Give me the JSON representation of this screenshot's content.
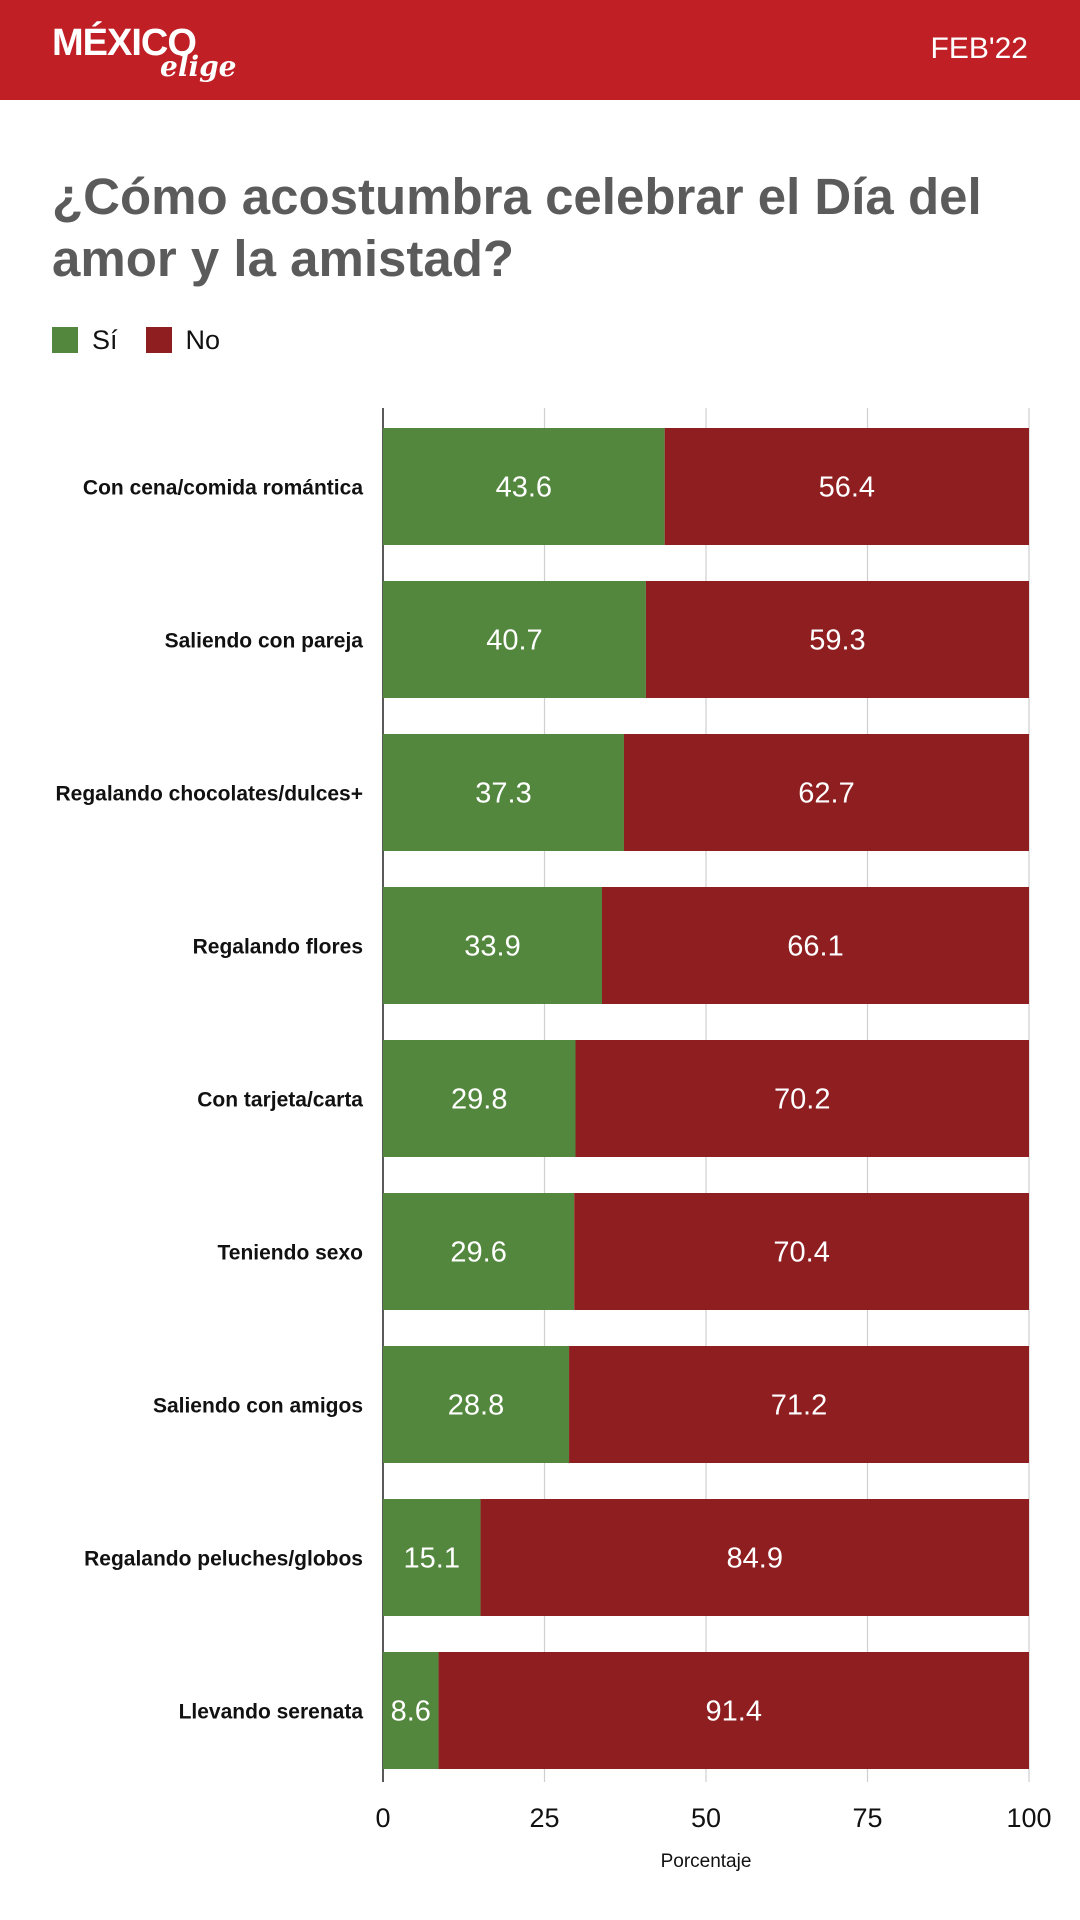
{
  "header": {
    "logo_main": "MÉXICO",
    "logo_sub": "elige",
    "date": "FEB'22"
  },
  "colors": {
    "header_bg": "#c01f25",
    "si": "#52873d",
    "no": "#8e1e20",
    "grid": "#cfcfcf"
  },
  "chart_data": {
    "type": "bar",
    "orientation": "horizontal",
    "stacked": true,
    "title": "¿Cómo acostumbra celebrar el Día del amor y la amistad?",
    "xlabel": "Porcentaje",
    "ylabel": "",
    "xlim": [
      0,
      100
    ],
    "xticks": [
      0,
      25,
      50,
      75,
      100
    ],
    "grid": true,
    "legend_position": "top-left",
    "categories": [
      "Con cena/comida romántica",
      "Saliendo con pareja",
      "Regalando chocolates/dulces+",
      "Regalando flores",
      "Con tarjeta/carta",
      "Teniendo sexo",
      "Saliendo con amigos",
      "Regalando peluches/globos",
      "Llevando serenata"
    ],
    "series": [
      {
        "name": "Sí",
        "color": "#52873d",
        "values": [
          43.6,
          40.7,
          37.3,
          33.9,
          29.8,
          29.6,
          28.8,
          15.1,
          8.6
        ]
      },
      {
        "name": "No",
        "color": "#8e1e20",
        "values": [
          56.4,
          59.3,
          62.7,
          66.1,
          70.2,
          70.4,
          71.2,
          84.9,
          91.4
        ]
      }
    ]
  }
}
